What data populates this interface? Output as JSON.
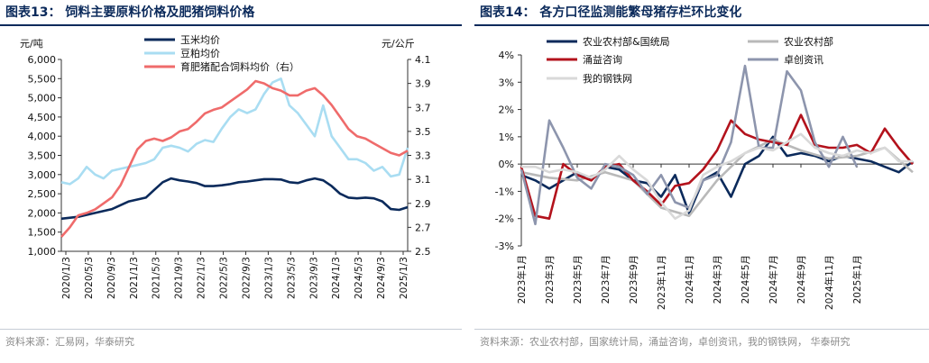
{
  "charts": {
    "left": {
      "title": "图表13：  饲料主要原料价格及肥猪饲料价格",
      "source": "资料来源：汇易网，华泰研究",
      "left_unit": "元/吨",
      "right_unit": "元/公斤"
    },
    "right": {
      "title": "图表14：  各方口径监测能繁母猪存栏环比变化",
      "source": "资料来源：农业农村部，国家统计局，涌益咨询，卓创资讯，我的钢铁网，  华泰研究"
    }
  },
  "colors": {
    "corn": "#0b2a5b",
    "soymeal": "#a9ddf2",
    "feed": "#ef6b6b",
    "moa_nbs": "#0b2a5b",
    "moa": "#b9b9b9",
    "yongyi": "#b3121c",
    "zhuochuang": "#8d95ad",
    "mysteel": "#d9d9d9"
  },
  "chart_data": [
    {
      "type": "line",
      "title": "",
      "x_ticks": [
        "2020/1/3",
        "2020/5/3",
        "2020/9/3",
        "2021/1/3",
        "2021/5/3",
        "2021/9/3",
        "2022/1/3",
        "2022/5/3",
        "2022/9/3",
        "2023/1/3",
        "2023/5/3",
        "2023/9/3",
        "2024/1/3",
        "2024/5/3",
        "2024/9/3",
        "2025/1/3"
      ],
      "y_left": {
        "unit": "元/吨",
        "range": [
          1000,
          6000
        ],
        "ticks": [
          "1,000",
          "1,500",
          "2,000",
          "2,500",
          "3,000",
          "3,500",
          "4,000",
          "4,500",
          "5,000",
          "5,500",
          "6,000"
        ]
      },
      "y_right": {
        "unit": "元/公斤",
        "range": [
          2.5,
          4.1
        ],
        "ticks": [
          "2.5",
          "2.7",
          "2.9",
          "3.1",
          "3.3",
          "3.5",
          "3.7",
          "3.9",
          "4.1"
        ]
      },
      "legend_position": "top-left",
      "series": [
        {
          "name": "玉米均价",
          "axis": "left",
          "color_key": "corn",
          "points": [
            [
              0,
              1850
            ],
            [
              2,
              1900
            ],
            [
              4,
              2000
            ],
            [
              6,
              2100
            ],
            [
              8,
              2300
            ],
            [
              10,
              2400
            ],
            [
              11,
              2600
            ],
            [
              12,
              2800
            ],
            [
              13,
              2900
            ],
            [
              14,
              2850
            ],
            [
              15,
              2820
            ],
            [
              16,
              2780
            ],
            [
              17,
              2700
            ],
            [
              18,
              2700
            ],
            [
              19,
              2720
            ],
            [
              20,
              2750
            ],
            [
              21,
              2800
            ],
            [
              22,
              2820
            ],
            [
              23,
              2850
            ],
            [
              24,
              2880
            ],
            [
              25,
              2880
            ],
            [
              26,
              2870
            ],
            [
              27,
              2800
            ],
            [
              28,
              2780
            ],
            [
              29,
              2850
            ],
            [
              30,
              2900
            ],
            [
              31,
              2850
            ],
            [
              32,
              2700
            ],
            [
              33,
              2500
            ],
            [
              34,
              2400
            ],
            [
              35,
              2380
            ],
            [
              36,
              2400
            ],
            [
              37,
              2380
            ],
            [
              38,
              2300
            ],
            [
              39,
              2100
            ],
            [
              40,
              2080
            ],
            [
              41,
              2150
            ]
          ]
        },
        {
          "name": "豆粕均价",
          "axis": "left",
          "color_key": "soymeal",
          "points": [
            [
              0,
              2800
            ],
            [
              1,
              2750
            ],
            [
              2,
              2900
            ],
            [
              3,
              3200
            ],
            [
              4,
              3000
            ],
            [
              5,
              2900
            ],
            [
              6,
              3100
            ],
            [
              7,
              3150
            ],
            [
              8,
              3200
            ],
            [
              9,
              3250
            ],
            [
              10,
              3300
            ],
            [
              11,
              3400
            ],
            [
              12,
              3700
            ],
            [
              13,
              3750
            ],
            [
              14,
              3700
            ],
            [
              15,
              3600
            ],
            [
              16,
              3800
            ],
            [
              17,
              3900
            ],
            [
              18,
              3850
            ],
            [
              19,
              4200
            ],
            [
              20,
              4500
            ],
            [
              21,
              4700
            ],
            [
              22,
              4600
            ],
            [
              23,
              4700
            ],
            [
              24,
              5100
            ],
            [
              25,
              5400
            ],
            [
              26,
              5500
            ],
            [
              27,
              4800
            ],
            [
              28,
              4600
            ],
            [
              29,
              4300
            ],
            [
              30,
              4000
            ],
            [
              31,
              4800
            ],
            [
              32,
              4000
            ],
            [
              33,
              3700
            ],
            [
              34,
              3400
            ],
            [
              35,
              3400
            ],
            [
              36,
              3300
            ],
            [
              37,
              3100
            ],
            [
              38,
              3200
            ],
            [
              39,
              2950
            ],
            [
              40,
              3000
            ],
            [
              41,
              3700
            ]
          ]
        },
        {
          "name": "育肥猪配合饲料均价（右）",
          "axis": "right",
          "color_key": "feed",
          "points": [
            [
              0,
              2.62
            ],
            [
              1,
              2.7
            ],
            [
              2,
              2.8
            ],
            [
              3,
              2.82
            ],
            [
              4,
              2.85
            ],
            [
              5,
              2.9
            ],
            [
              6,
              2.95
            ],
            [
              7,
              3.05
            ],
            [
              8,
              3.2
            ],
            [
              9,
              3.35
            ],
            [
              10,
              3.42
            ],
            [
              11,
              3.44
            ],
            [
              12,
              3.42
            ],
            [
              13,
              3.45
            ],
            [
              14,
              3.5
            ],
            [
              15,
              3.52
            ],
            [
              16,
              3.58
            ],
            [
              17,
              3.65
            ],
            [
              18,
              3.68
            ],
            [
              19,
              3.7
            ],
            [
              20,
              3.75
            ],
            [
              21,
              3.8
            ],
            [
              22,
              3.85
            ],
            [
              23,
              3.92
            ],
            [
              24,
              3.9
            ],
            [
              25,
              3.86
            ],
            [
              26,
              3.84
            ],
            [
              27,
              3.8
            ],
            [
              28,
              3.8
            ],
            [
              29,
              3.84
            ],
            [
              30,
              3.86
            ],
            [
              31,
              3.8
            ],
            [
              32,
              3.72
            ],
            [
              33,
              3.62
            ],
            [
              34,
              3.52
            ],
            [
              35,
              3.46
            ],
            [
              36,
              3.44
            ],
            [
              37,
              3.4
            ],
            [
              38,
              3.36
            ],
            [
              39,
              3.32
            ],
            [
              40,
              3.3
            ],
            [
              41,
              3.34
            ]
          ]
        }
      ]
    },
    {
      "type": "line",
      "title": "",
      "x_ticks": [
        "2023年1月",
        "2023年3月",
        "2023年5月",
        "2023年7月",
        "2023年9月",
        "2023年11月",
        "2024年1月",
        "2024年3月",
        "2024年5月",
        "2024年7月",
        "2024年9月",
        "2024年11月",
        "2025年1月"
      ],
      "y": {
        "range": [
          -3,
          4
        ],
        "ticks": [
          "-3%",
          "-2%",
          "-1%",
          "0%",
          "1%",
          "2%",
          "3%",
          "4%"
        ]
      },
      "legend_position": "top",
      "series": [
        {
          "name": "农业农村部&国统局",
          "color_key": "moa_nbs",
          "points": [
            [
              0,
              -0.4
            ],
            [
              1,
              -0.6
            ],
            [
              2,
              -0.9
            ],
            [
              3,
              -0.6
            ],
            [
              4,
              -0.3
            ],
            [
              5,
              -0.6
            ],
            [
              6,
              -0.1
            ],
            [
              7,
              -0.2
            ],
            [
              8,
              -0.6
            ],
            [
              9,
              -0.7
            ],
            [
              10,
              -1.2
            ],
            [
              11,
              -0.4
            ],
            [
              12,
              -1.8
            ],
            [
              13,
              -0.6
            ],
            [
              14,
              -0.3
            ],
            [
              15,
              -1.2
            ],
            [
              16,
              0.0
            ],
            [
              17,
              0.3
            ],
            [
              18,
              1.0
            ],
            [
              19,
              0.3
            ],
            [
              20,
              0.4
            ],
            [
              21,
              0.3
            ],
            [
              22,
              0.1
            ],
            [
              23,
              0.3
            ],
            [
              24,
              0.2
            ],
            [
              25,
              0.1
            ],
            [
              26,
              -0.1
            ],
            [
              27,
              -0.3
            ],
            [
              28,
              0.1
            ]
          ]
        },
        {
          "name": "农业农村部",
          "color_key": "moa",
          "points": [
            [
              0,
              -0.3
            ],
            [
              2,
              -0.5
            ],
            [
              4,
              -0.6
            ],
            [
              6,
              -0.3
            ],
            [
              8,
              -0.6
            ],
            [
              10,
              -1.6
            ],
            [
              12,
              -1.9
            ],
            [
              14,
              -0.6
            ],
            [
              16,
              0.4
            ],
            [
              18,
              0.9
            ],
            [
              20,
              0.5
            ],
            [
              22,
              0.2
            ],
            [
              24,
              0.3
            ],
            [
              26,
              0.6
            ],
            [
              28,
              -0.3
            ]
          ]
        },
        {
          "name": "涌益咨询",
          "color_key": "yongyi",
          "points": [
            [
              0,
              -0.1
            ],
            [
              1,
              -1.9
            ],
            [
              2,
              -2.0
            ],
            [
              3,
              0.0
            ],
            [
              4,
              -0.4
            ],
            [
              5,
              -0.6
            ],
            [
              6,
              -0.1
            ],
            [
              7,
              0.0
            ],
            [
              8,
              -0.6
            ],
            [
              9,
              -1.0
            ],
            [
              10,
              -1.5
            ],
            [
              11,
              -0.8
            ],
            [
              12,
              -0.7
            ],
            [
              13,
              -0.2
            ],
            [
              14,
              0.5
            ],
            [
              15,
              1.6
            ],
            [
              16,
              1.1
            ],
            [
              17,
              0.9
            ],
            [
              18,
              0.8
            ],
            [
              19,
              0.7
            ],
            [
              20,
              1.8
            ],
            [
              21,
              0.7
            ],
            [
              22,
              0.6
            ],
            [
              23,
              0.6
            ],
            [
              24,
              0.7
            ],
            [
              25,
              0.4
            ],
            [
              26,
              1.3
            ],
            [
              27,
              0.6
            ],
            [
              28,
              0.0
            ]
          ]
        },
        {
          "name": "卓创资讯",
          "color_key": "zhuochuang",
          "points": [
            [
              0,
              -0.2
            ],
            [
              1,
              -2.2
            ],
            [
              2,
              1.6
            ],
            [
              3,
              0.6
            ],
            [
              4,
              -0.5
            ],
            [
              5,
              -0.9
            ],
            [
              6,
              0.0
            ],
            [
              7,
              -0.1
            ],
            [
              8,
              -0.4
            ],
            [
              9,
              -1.1
            ],
            [
              10,
              -0.4
            ],
            [
              11,
              -1.4
            ],
            [
              12,
              -1.6
            ],
            [
              13,
              -0.6
            ],
            [
              14,
              -0.4
            ],
            [
              15,
              0.8
            ],
            [
              16,
              3.6
            ],
            [
              17,
              0.6
            ],
            [
              18,
              0.6
            ],
            [
              19,
              3.4
            ],
            [
              20,
              2.7
            ],
            [
              21,
              0.8
            ],
            [
              22,
              -0.1
            ],
            [
              23,
              1.0
            ],
            [
              24,
              -0.1
            ]
          ]
        },
        {
          "name": "我的钢铁网",
          "color_key": "mysteel",
          "points": [
            [
              0,
              -0.1
            ],
            [
              1,
              -0.1
            ],
            [
              2,
              -0.3
            ],
            [
              3,
              -0.2
            ],
            [
              4,
              -0.3
            ],
            [
              5,
              -0.5
            ],
            [
              6,
              -0.2
            ],
            [
              7,
              0.3
            ],
            [
              8,
              -0.2
            ],
            [
              9,
              -0.6
            ],
            [
              10,
              -1.4
            ],
            [
              11,
              -2.0
            ],
            [
              12,
              -1.7
            ],
            [
              13,
              -0.4
            ],
            [
              14,
              -0.1
            ],
            [
              15,
              0.1
            ],
            [
              16,
              0.4
            ],
            [
              17,
              0.6
            ],
            [
              18,
              0.5
            ],
            [
              19,
              0.8
            ],
            [
              20,
              1.1
            ],
            [
              21,
              0.6
            ],
            [
              22,
              0.4
            ],
            [
              23,
              0.3
            ],
            [
              24,
              0.5
            ],
            [
              25,
              0.4
            ],
            [
              26,
              0.6
            ],
            [
              27,
              0.1
            ],
            [
              28,
              0.1
            ]
          ]
        }
      ]
    }
  ]
}
